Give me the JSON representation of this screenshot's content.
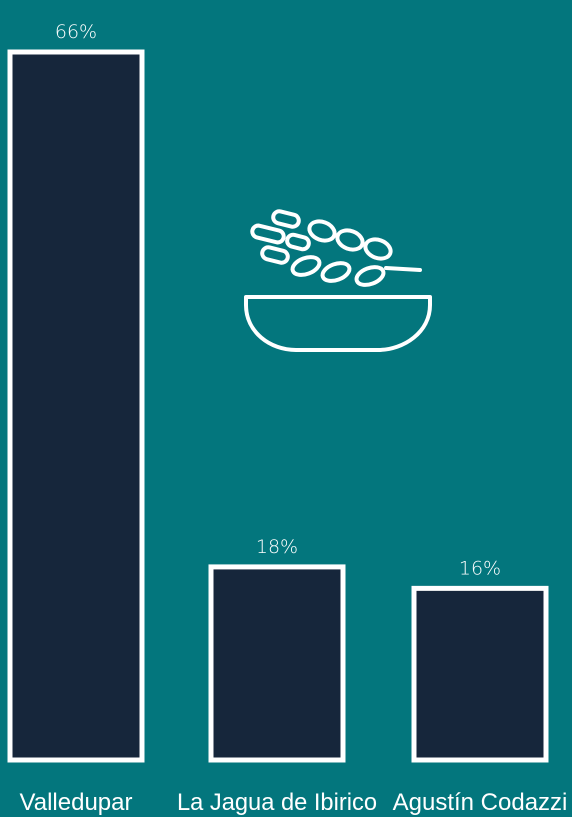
{
  "chart_data": {
    "type": "bar",
    "categories": [
      "Valledupar",
      "La Jagua de Ibirico",
      "Agustín Codazzi"
    ],
    "values": [
      66,
      18,
      16
    ],
    "value_labels": [
      "66%",
      "18%",
      "16%"
    ],
    "unit": "%",
    "ylim": [
      0,
      66
    ],
    "grid": false,
    "legend": "none"
  },
  "icon": "grain-bowl-icon",
  "colors": {
    "background": "#03767d",
    "bar_fill": "#16263b",
    "bar_stroke": "#ffffff",
    "text": "#ffffff"
  }
}
